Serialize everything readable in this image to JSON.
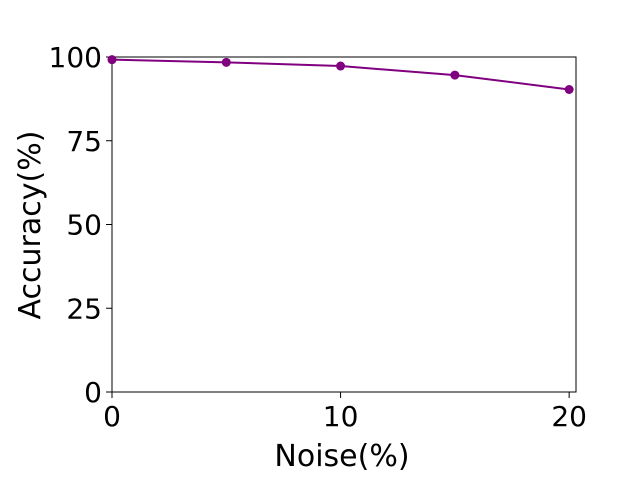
{
  "chart_data": {
    "type": "line",
    "title": "",
    "xlabel": "Noise(%)",
    "ylabel": "Accuracy(%)",
    "xlim": [
      0,
      20.3
    ],
    "ylim": [
      0,
      100
    ],
    "xticks": [
      0,
      10,
      20
    ],
    "yticks": [
      0,
      25,
      50,
      75,
      100
    ],
    "xtick_labels": [
      "0",
      "10",
      "20"
    ],
    "ytick_labels": [
      "0",
      "25",
      "50",
      "75",
      "100"
    ],
    "grid": false,
    "legend": "none",
    "series": [
      {
        "color": "#800080",
        "marker": "circle",
        "x": [
          0,
          5,
          10,
          15,
          20
        ],
        "y": [
          99.2,
          98.4,
          97.3,
          94.6,
          90.3
        ]
      }
    ]
  }
}
